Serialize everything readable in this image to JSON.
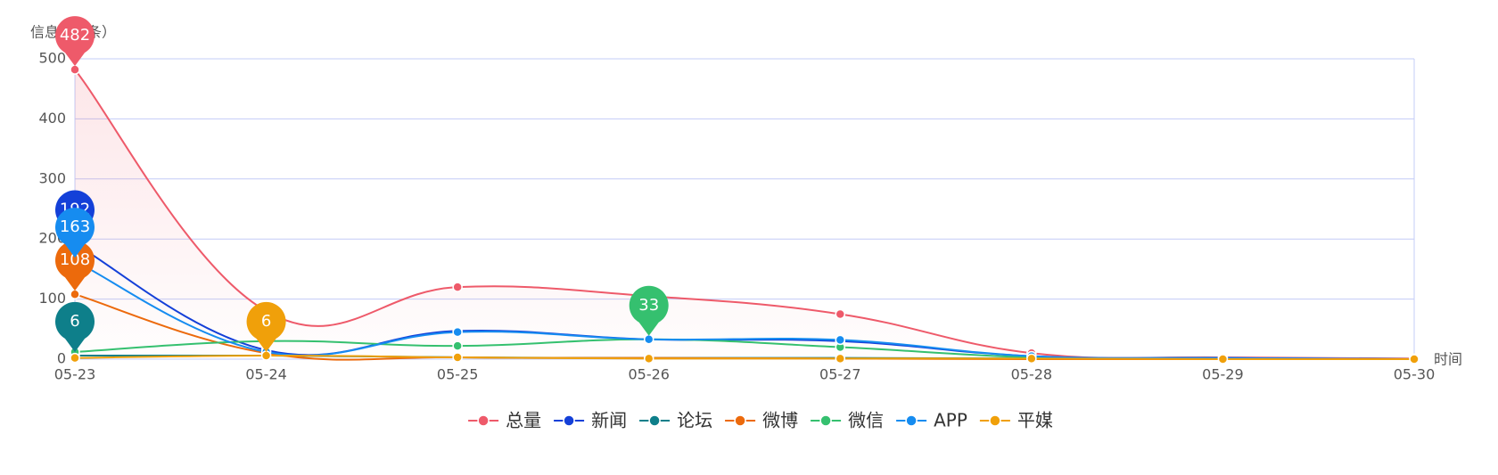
{
  "chart_data": {
    "type": "line",
    "y_axis_label": "信息量（条）",
    "x_axis_label": "时间",
    "categories": [
      "05-23",
      "05-24",
      "05-25",
      "05-26",
      "05-27",
      "05-28",
      "05-29",
      "05-30"
    ],
    "ylim": [
      0,
      500
    ],
    "yticks": [
      0,
      100,
      200,
      300,
      400,
      500
    ],
    "grid": true,
    "series": [
      {
        "name": "总量",
        "color": "#ee5a6a",
        "values": [
          482,
          80,
          120,
          105,
          75,
          10,
          3,
          1
        ]
      },
      {
        "name": "新闻",
        "color": "#1440d8",
        "values": [
          192,
          15,
          47,
          33,
          30,
          5,
          2,
          0
        ]
      },
      {
        "name": "论坛",
        "color": "#0e7f8a",
        "values": [
          6,
          6,
          3,
          2,
          2,
          1,
          0,
          0
        ]
      },
      {
        "name": "微博",
        "color": "#ec6a0c",
        "values": [
          108,
          10,
          3,
          2,
          1,
          0,
          0,
          0
        ]
      },
      {
        "name": "微信",
        "color": "#35c06f",
        "values": [
          12,
          30,
          22,
          33,
          20,
          3,
          1,
          0
        ]
      },
      {
        "name": "APP",
        "color": "#168cf0",
        "values": [
          163,
          12,
          45,
          33,
          32,
          5,
          2,
          0
        ]
      },
      {
        "name": "平媒",
        "color": "#f0a00a",
        "values": [
          2,
          6,
          3,
          1,
          1,
          1,
          0,
          0
        ]
      }
    ]
  }
}
